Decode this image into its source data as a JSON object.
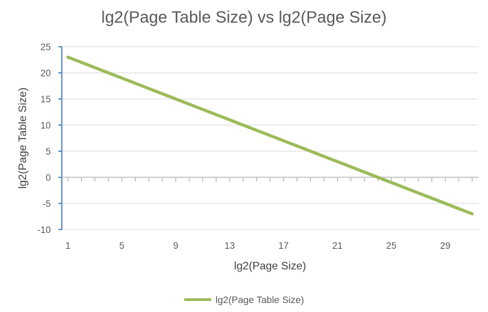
{
  "chart_data": {
    "type": "line",
    "title": "lg2(Page Table Size) vs lg2(Page Size)",
    "xlabel": "lg2(Page Size)",
    "ylabel": "lg2(Page Table Size)",
    "x": [
      1,
      2,
      3,
      4,
      5,
      6,
      7,
      8,
      9,
      10,
      11,
      12,
      13,
      14,
      15,
      16,
      17,
      18,
      19,
      20,
      21,
      22,
      23,
      24,
      25,
      26,
      27,
      28,
      29,
      30,
      31
    ],
    "x_tick_labels": [
      "1",
      "5",
      "9",
      "13",
      "17",
      "21",
      "25",
      "29"
    ],
    "x_tick_values": [
      1,
      5,
      9,
      13,
      17,
      21,
      25,
      29
    ],
    "y_tick_labels": [
      "25",
      "20",
      "15",
      "10",
      "5",
      "0",
      "-5",
      "-10"
    ],
    "y_tick_values": [
      25,
      20,
      15,
      10,
      5,
      0,
      -5,
      -10
    ],
    "ylim": [
      -10,
      25
    ],
    "grid": true,
    "legend_position": "bottom",
    "series": [
      {
        "name": "lg2(Page Table Size)",
        "color": "#9bbb59",
        "values": [
          23,
          22,
          21,
          20,
          19,
          18,
          17,
          16,
          15,
          14,
          13,
          12,
          11,
          10,
          9,
          8,
          7,
          6,
          5,
          4,
          3,
          2,
          1,
          0,
          -1,
          -2,
          -3,
          -4,
          -5,
          -6,
          -7
        ]
      }
    ]
  }
}
